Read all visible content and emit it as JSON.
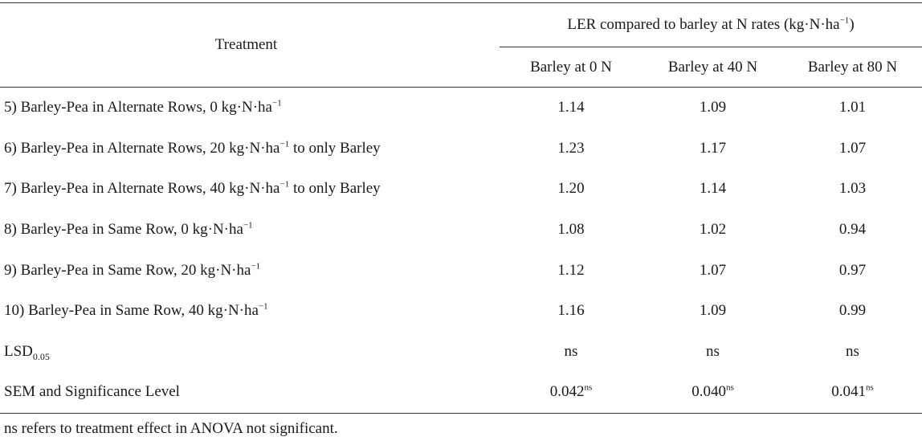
{
  "table": {
    "treatment_header": "Treatment",
    "group_header": {
      "text": "LER compared to barley at N rates (kg·N·ha",
      "sup": "−1",
      "close": ")"
    },
    "sub_headers": [
      "Barley at 0 N",
      "Barley at 40 N",
      "Barley at 80 N"
    ],
    "rows": [
      {
        "pre": "5) Barley-Pea in Alternate Rows, 0 kg·N·ha",
        "sup": "−1",
        "post": "",
        "values": [
          "1.14",
          "1.09",
          "1.01"
        ]
      },
      {
        "pre": "6) Barley-Pea in Alternate Rows, 20 kg·N·ha",
        "sup": "−1",
        "post": " to only Barley",
        "values": [
          "1.23",
          "1.17",
          "1.07"
        ]
      },
      {
        "pre": "7) Barley-Pea in Alternate Rows, 40 kg·N·ha",
        "sup": "−1",
        "post": " to only Barley",
        "values": [
          "1.20",
          "1.14",
          "1.03"
        ]
      },
      {
        "pre": "8) Barley-Pea in Same Row, 0 kg·N·ha",
        "sup": "−1",
        "post": "",
        "values": [
          "1.08",
          "1.02",
          "0.94"
        ]
      },
      {
        "pre": "9) Barley-Pea in Same Row, 20 kg·N·ha",
        "sup": "−1",
        "post": "",
        "values": [
          "1.12",
          "1.07",
          "0.97"
        ]
      },
      {
        "pre": "10) Barley-Pea in Same Row, 40 kg·N·ha",
        "sup": "−1",
        "post": "",
        "values": [
          "1.16",
          "1.09",
          "0.99"
        ]
      }
    ],
    "lsd_row": {
      "label": "LSD",
      "label_sub": "0.05",
      "values": [
        "ns",
        "ns",
        "ns"
      ]
    },
    "sem_row": {
      "label": "SEM and Significance Level",
      "values": [
        {
          "value": "0.042",
          "sup": "ns"
        },
        {
          "value": "0.040",
          "sup": "ns"
        },
        {
          "value": "0.041",
          "sup": "ns"
        }
      ]
    }
  },
  "footnote": "ns refers to treatment effect in ANOVA not significant."
}
